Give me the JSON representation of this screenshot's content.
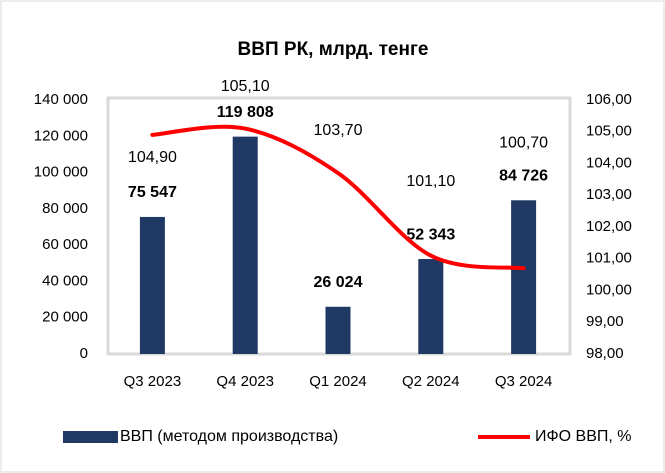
{
  "chart_data": {
    "type": "bar",
    "title": "ВВП РК, млрд. тенге",
    "categories": [
      "Q3 2023",
      "Q4 2023",
      "Q1 2024",
      "Q2 2024",
      "Q3 2024"
    ],
    "series": [
      {
        "name": "ВВП (методом производства)",
        "color": "#1f3864",
        "type": "bar",
        "values": [
          75547,
          119808,
          26024,
          52343,
          84726
        ],
        "value_labels": [
          "75 547",
          "119 808",
          "26 024",
          "52 343",
          "84 726"
        ]
      },
      {
        "name": "ИФО ВВП, %",
        "color": "#ff0000",
        "type": "line",
        "axis": "y2",
        "values": [
          104.9,
          105.1,
          103.7,
          101.1,
          100.7
        ],
        "value_labels": [
          "104,90",
          "105,10",
          "103,70",
          "101,10",
          "100,70"
        ]
      }
    ],
    "ylim": [
      0,
      140000
    ],
    "yticks": [
      0,
      {
        "value": 20000,
        "label": "20 000"
      },
      {
        "value": 40000,
        "label": "40 000"
      },
      {
        "value": 60000,
        "label": "60 000"
      },
      {
        "value": 80000,
        "label": "80 000"
      },
      {
        "value": 100000,
        "label": "100 000"
      },
      {
        "value": 120000,
        "label": "120 000"
      },
      {
        "value": 140000,
        "label": "140 000"
      }
    ],
    "y2lim": [
      98,
      106
    ],
    "y2ticks": [
      {
        "value": 98,
        "label": "98,00"
      },
      {
        "value": 99,
        "label": "99,00"
      },
      {
        "value": 100,
        "label": "100,00"
      },
      {
        "value": 101,
        "label": "101,00"
      },
      {
        "value": 102,
        "label": "102,00"
      },
      {
        "value": 103,
        "label": "103,00"
      },
      {
        "value": 104,
        "label": "104,00"
      },
      {
        "value": 105,
        "label": "105,00"
      },
      {
        "value": 106,
        "label": "106,00"
      }
    ],
    "grid": false,
    "legend": "bottom"
  }
}
